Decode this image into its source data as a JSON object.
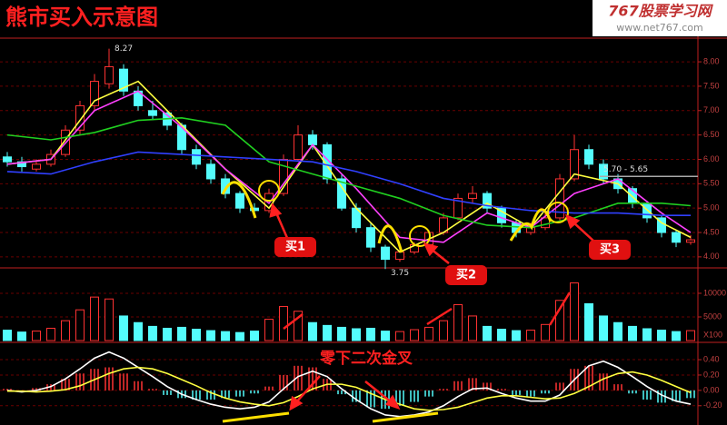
{
  "title": "熊市买入示意图",
  "watermark": {
    "site": "767股票学习网",
    "url": "www.net767.com"
  },
  "chart_data": [
    {
      "type": "candlestick",
      "up_color": "#ff3232",
      "down_color": "#54fcfc",
      "grid": true,
      "ylim": [
        3.83,
        8.43
      ],
      "yticks": [
        {
          "value": 4,
          "label": "4.00"
        },
        {
          "value": 4.5,
          "label": "4.50"
        },
        {
          "value": 5,
          "label": "5.00"
        },
        {
          "value": 5.5,
          "label": "5.50"
        },
        {
          "value": 6,
          "label": "6.00"
        },
        {
          "value": 6.5,
          "label": "6.50"
        },
        {
          "value": 7,
          "label": "7.00"
        },
        {
          "value": 7.5,
          "label": "7.50"
        },
        {
          "value": 8,
          "label": "8.00"
        }
      ],
      "open": [
        6.05,
        5.95,
        5.8,
        5.9,
        6.1,
        6.6,
        7.1,
        7.55,
        7.85,
        7.4,
        7.0,
        6.95,
        6.7,
        6.2,
        5.9,
        5.6,
        5.3,
        5.0,
        4.95,
        5.3,
        6.0,
        6.5,
        6.3,
        5.6,
        5.0,
        4.6,
        4.2,
        3.95,
        4.1,
        4.25,
        4.5,
        4.8,
        5.2,
        5.3,
        5.0,
        4.7,
        4.5,
        4.6,
        4.8,
        5.6,
        6.2,
        5.9,
        5.6,
        5.4,
        5.1,
        4.8,
        4.5,
        4.3
      ],
      "high": [
        6.15,
        6.05,
        6.0,
        6.2,
        6.7,
        7.2,
        7.75,
        8.27,
        7.95,
        7.5,
        7.2,
        7.0,
        6.75,
        6.3,
        6.0,
        5.7,
        5.35,
        5.1,
        5.4,
        6.1,
        6.7,
        6.6,
        6.35,
        5.7,
        5.1,
        4.7,
        4.25,
        4.15,
        4.3,
        4.55,
        4.9,
        5.3,
        5.45,
        5.35,
        5.05,
        4.75,
        4.7,
        4.9,
        5.7,
        6.5,
        6.3,
        6.0,
        5.7,
        5.45,
        5.15,
        4.85,
        4.55,
        4.45
      ],
      "low": [
        5.85,
        5.75,
        5.75,
        5.85,
        6.05,
        6.5,
        7.0,
        7.45,
        7.3,
        7.0,
        6.8,
        6.6,
        6.1,
        5.8,
        5.5,
        5.2,
        4.9,
        4.85,
        4.9,
        5.25,
        5.95,
        6.2,
        5.5,
        4.95,
        4.5,
        4.1,
        3.75,
        3.9,
        4.05,
        4.2,
        4.45,
        4.75,
        5.1,
        4.9,
        4.6,
        4.4,
        4.45,
        4.55,
        4.75,
        5.55,
        5.8,
        5.5,
        5.3,
        5.0,
        4.7,
        4.4,
        4.2,
        4.25
      ],
      "close": [
        5.95,
        5.85,
        5.9,
        6.1,
        6.6,
        7.1,
        7.6,
        7.9,
        7.4,
        7.1,
        6.9,
        6.7,
        6.2,
        5.9,
        5.6,
        5.3,
        5.0,
        4.95,
        5.3,
        6.0,
        6.5,
        6.3,
        5.6,
        5.0,
        4.6,
        4.2,
        3.95,
        4.1,
        4.25,
        4.5,
        4.8,
        5.2,
        5.3,
        5.0,
        4.7,
        4.5,
        4.6,
        4.8,
        5.6,
        6.2,
        5.9,
        5.6,
        5.4,
        5.1,
        4.8,
        4.5,
        4.3,
        4.35
      ],
      "ma_x": [
        0,
        3,
        6,
        9,
        12,
        15,
        18,
        21,
        24,
        27,
        30,
        33,
        36,
        39,
        42,
        45,
        47
      ],
      "series": [
        {
          "color": "#ffff40",
          "values": [
            5.9,
            6.0,
            7.2,
            7.6,
            6.7,
            5.8,
            5.0,
            6.3,
            5.0,
            4.1,
            4.5,
            5.1,
            4.6,
            5.7,
            5.5,
            4.7,
            4.4
          ]
        },
        {
          "color": "#ff40ff",
          "values": [
            5.9,
            6.0,
            7.0,
            7.4,
            6.66,
            5.8,
            5.1,
            6.3,
            5.4,
            4.4,
            4.3,
            4.9,
            4.6,
            5.3,
            5.6,
            4.9,
            4.5
          ]
        },
        {
          "color": "#20d020",
          "values": [
            6.5,
            6.4,
            6.55,
            6.8,
            6.85,
            6.7,
            5.95,
            5.7,
            5.45,
            5.2,
            4.85,
            4.65,
            4.6,
            4.8,
            5.1,
            5.1,
            5.05
          ]
        },
        {
          "color": "#3040ff",
          "values": [
            5.75,
            5.7,
            5.95,
            6.15,
            6.1,
            6.05,
            6.0,
            5.95,
            5.75,
            5.5,
            5.2,
            5.05,
            4.95,
            4.9,
            4.9,
            4.85,
            4.85
          ]
        }
      ],
      "high_mark": {
        "label": "8.27",
        "value": 8.27
      },
      "low_mark": {
        "label": "3.75",
        "value": 3.75
      },
      "price_line": {
        "label": "5.70 - 5.65",
        "value": 5.65
      },
      "annotations": [
        "买1",
        "买2",
        "买3"
      ]
    },
    {
      "type": "bar",
      "ylim": [
        0,
        14800
      ],
      "yticks": [
        5000,
        10000
      ],
      "unit_label": "X100",
      "values": [
        2200,
        1800,
        2000,
        2600,
        4200,
        6500,
        9200,
        8800,
        5200,
        3800,
        3000,
        2600,
        2800,
        2400,
        2100,
        1900,
        1700,
        2000,
        4500,
        7200,
        6200,
        3800,
        3200,
        2800,
        2500,
        2600,
        2000,
        1900,
        2300,
        2800,
        4200,
        7600,
        5200,
        3000,
        2400,
        2100,
        2200,
        3400,
        8500,
        12200,
        7800,
        5200,
        3800,
        3000,
        2500,
        2200,
        1900,
        2100
      ]
    },
    {
      "type": "macd",
      "ylim": [
        -0.38,
        0.59
      ],
      "yticks": [
        {
          "value": -0.2,
          "label": "-0.20"
        },
        {
          "value": 0,
          "label": "0.00"
        },
        {
          "value": 0.2,
          "label": "0.20"
        },
        {
          "value": 0.4,
          "label": "0.40"
        }
      ],
      "values": [
        0.02,
        0,
        0.03,
        0.08,
        0.15,
        0.22,
        0.28,
        0.3,
        0.22,
        0.12,
        0.02,
        -0.06,
        -0.1,
        -0.12,
        -0.12,
        -0.1,
        -0.08,
        -0.04,
        0.05,
        0.2,
        0.32,
        0.3,
        0.15,
        -0.05,
        -0.15,
        -0.22,
        -0.24,
        -0.2,
        -0.15,
        -0.08,
        0.02,
        0.12,
        0.16,
        0.1,
        0.02,
        -0.06,
        -0.08,
        -0.04,
        0.1,
        0.28,
        0.32,
        0.22,
        0.08,
        -0.04,
        -0.12,
        -0.16,
        -0.14,
        -0.1
      ],
      "series": [
        {
          "color": "#ffffff",
          "values": [
            0,
            -0.02,
            0,
            0.05,
            0.15,
            0.28,
            0.42,
            0.5,
            0.42,
            0.3,
            0.18,
            0.05,
            -0.05,
            -0.12,
            -0.18,
            -0.22,
            -0.24,
            -0.22,
            -0.15,
            0.02,
            0.18,
            0.25,
            0.18,
            0.02,
            -0.12,
            -0.24,
            -0.32,
            -0.34,
            -0.32,
            -0.28,
            -0.2,
            -0.08,
            0.02,
            0.03,
            -0.04,
            -0.1,
            -0.14,
            -0.14,
            -0.06,
            0.14,
            0.32,
            0.38,
            0.3,
            0.18,
            0.05,
            -0.06,
            -0.14,
            -0.18
          ]
        },
        {
          "color": "#ffff40",
          "values": [
            -0.01,
            -0.01,
            -0.02,
            -0.01,
            0.01,
            0.06,
            0.14,
            0.22,
            0.28,
            0.3,
            0.28,
            0.22,
            0.14,
            0.06,
            -0.03,
            -0.1,
            -0.15,
            -0.18,
            -0.2,
            -0.16,
            -0.08,
            0.02,
            0.08,
            0.08,
            0.04,
            -0.04,
            -0.12,
            -0.18,
            -0.24,
            -0.26,
            -0.25,
            -0.22,
            -0.16,
            -0.1,
            -0.07,
            -0.07,
            -0.09,
            -0.11,
            -0.1,
            -0.04,
            0.05,
            0.15,
            0.22,
            0.24,
            0.2,
            0.13,
            0.05,
            -0.03
          ]
        }
      ],
      "annotation": "零下二次金叉"
    }
  ]
}
